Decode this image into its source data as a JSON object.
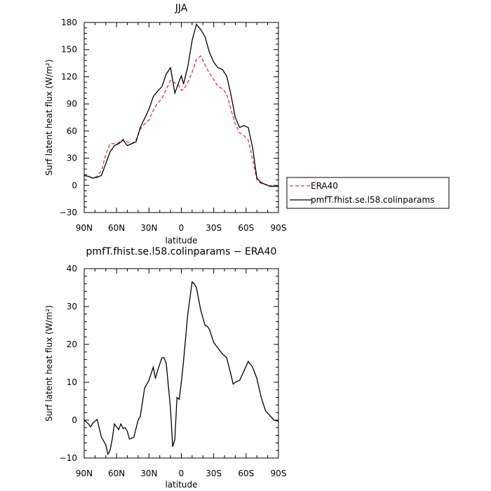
{
  "chart_data": [
    {
      "type": "line",
      "title": "JJA",
      "xlabel": "latitude",
      "ylabel": "Surf latent heat flux (W/m²)",
      "x_ticks": [
        90,
        60,
        30,
        0,
        -30,
        -60,
        -90
      ],
      "x_tick_labels": [
        "90N",
        "60N",
        "30N",
        "0",
        "30S",
        "60S",
        "90S"
      ],
      "xlim": [
        90,
        -90
      ],
      "ylim": [
        -30,
        180
      ],
      "y_ticks": [
        -30,
        0,
        30,
        60,
        90,
        120,
        150,
        180
      ],
      "y_tick_labels": [
        "−30",
        "0",
        "30",
        "60",
        "90",
        "120",
        "150",
        "180"
      ],
      "legend": "right",
      "series": [
        {
          "name": "ERA40",
          "color": "#e8312f",
          "dash": "dashed",
          "x": [
            90,
            86,
            82,
            78,
            74,
            70,
            66,
            62,
            58,
            54,
            50,
            46,
            42,
            38,
            34,
            30,
            26,
            22,
            18,
            14,
            10,
            6,
            2,
            0,
            -2,
            -6,
            -10,
            -14,
            -18,
            -22,
            -26,
            -30,
            -34,
            -38,
            -42,
            -46,
            -50,
            -54,
            -58,
            -62,
            -66,
            -70,
            -74,
            -78,
            -82,
            -86,
            -90
          ],
          "y": [
            11,
            9.5,
            8,
            10,
            16,
            34,
            46,
            46,
            47,
            51,
            48,
            46,
            50,
            62,
            68,
            72,
            83,
            91,
            96,
            106,
            116,
            113,
            110,
            105,
            106,
            114,
            125,
            139,
            143,
            133,
            124,
            117,
            109,
            107,
            101,
            84,
            68,
            58,
            55,
            50,
            29,
            6,
            2,
            1,
            0,
            -1,
            -1
          ]
        },
        {
          "name": "pmfT.fhist.se.l58.colinparams",
          "color": "#000000",
          "dash": "solid",
          "x": [
            90,
            86,
            82,
            78,
            74,
            70,
            66,
            62,
            58,
            54,
            50,
            46,
            42,
            38,
            34,
            30,
            26,
            22,
            18,
            14,
            10,
            6,
            2,
            0,
            -2,
            -6,
            -10,
            -14,
            -18,
            -22,
            -26,
            -30,
            -34,
            -38,
            -42,
            -46,
            -50,
            -54,
            -58,
            -62,
            -66,
            -70,
            -74,
            -78,
            -82,
            -86,
            -90
          ],
          "y": [
            11,
            10,
            8,
            9,
            11,
            24,
            37,
            44,
            46,
            50,
            44,
            46,
            48,
            64,
            74,
            84,
            98,
            104,
            109,
            123,
            130,
            102,
            115,
            121,
            112,
            131,
            160,
            178,
            172,
            164,
            147,
            136,
            130,
            128,
            121,
            100,
            75,
            64,
            66,
            64,
            42,
            8,
            3,
            1,
            -1,
            -1,
            -1
          ]
        }
      ]
    },
    {
      "type": "line",
      "title": "pmfT.fhist.se.l58.colinparams − ERA40",
      "xlabel": "latitude",
      "ylabel": "Surf latent heat flux (W/m²)",
      "x_ticks": [
        90,
        60,
        30,
        0,
        -30,
        -60,
        -90
      ],
      "x_tick_labels": [
        "90N",
        "60N",
        "30N",
        "0",
        "30S",
        "60S",
        "90S"
      ],
      "xlim": [
        90,
        -90
      ],
      "ylim": [
        -10,
        40
      ],
      "y_ticks": [
        -10,
        0,
        10,
        20,
        30,
        40
      ],
      "y_tick_labels": [
        "−10",
        "0",
        "10",
        "20",
        "30",
        "40"
      ],
      "series": [
        {
          "color": "#000000",
          "dash": "solid",
          "x": [
            90,
            86,
            84,
            82,
            78,
            74,
            70,
            68,
            66,
            64,
            62,
            58,
            56,
            54,
            52,
            50,
            48,
            44,
            40,
            38,
            34,
            30,
            26,
            24,
            22,
            18,
            16,
            14,
            10,
            8,
            6,
            4,
            2,
            0,
            -2,
            -6,
            -10,
            -12,
            -14,
            -18,
            -22,
            -24,
            -26,
            -30,
            -34,
            -38,
            -42,
            -46,
            -48,
            -50,
            -54,
            -58,
            -62,
            -66,
            -70,
            -74,
            -78,
            -82,
            -86,
            -90
          ],
          "y": [
            0,
            -1,
            -1.8,
            -0.8,
            0.2,
            -4.5,
            -6.5,
            -9,
            -8,
            -5,
            -1,
            -2.5,
            -1,
            -2.2,
            -2,
            -3,
            -5,
            -4.5,
            0,
            1,
            8.5,
            10.5,
            14,
            11,
            13,
            16.5,
            16.5,
            15,
            3,
            -7,
            -5,
            6,
            5.5,
            10,
            15.5,
            28,
            36.5,
            36,
            35,
            29,
            25,
            24.8,
            24,
            20.5,
            19,
            17.5,
            16.5,
            12,
            9.5,
            10,
            10.5,
            13,
            15.5,
            14,
            11,
            6,
            2.5,
            1.2,
            0,
            -0.3
          ]
        }
      ]
    }
  ]
}
